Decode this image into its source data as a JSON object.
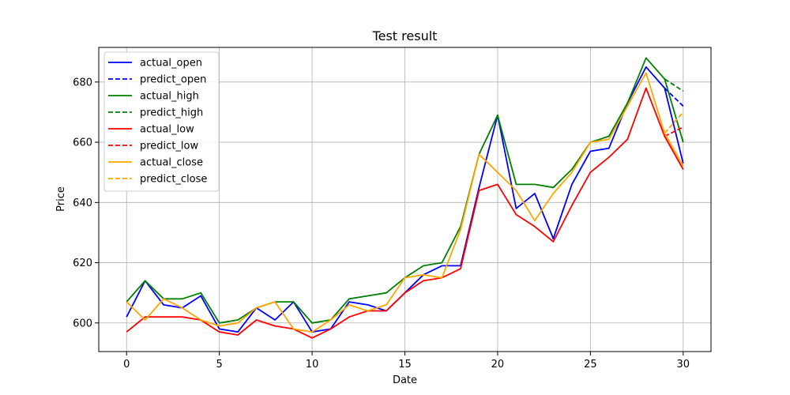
{
  "chart_data": {
    "type": "line",
    "title": "Test result",
    "xlabel": "Date",
    "ylabel": "Price",
    "xlim": [
      -1.5,
      31.5
    ],
    "ylim": [
      590.5,
      691.5
    ],
    "xticks": [
      0,
      5,
      10,
      15,
      20,
      25,
      30
    ],
    "yticks": [
      600,
      620,
      640,
      660,
      680
    ],
    "grid": true,
    "legend_position": "top-left",
    "series": [
      {
        "name": "actual_open",
        "color": "#0000ff",
        "dash": "solid",
        "x": [
          0,
          1,
          2,
          3,
          4,
          5,
          6,
          7,
          8,
          9,
          10,
          11,
          12,
          13,
          14,
          15,
          16,
          17,
          18,
          19,
          20,
          21,
          22,
          23,
          24,
          25,
          26,
          27,
          28,
          29,
          30
        ],
        "values": [
          602,
          614,
          606,
          605,
          609,
          598,
          597,
          605,
          601,
          607,
          597,
          598,
          607,
          606,
          604,
          610,
          616,
          619,
          619,
          645,
          669,
          638,
          643,
          628,
          646,
          657,
          658,
          673,
          685,
          678,
          653
        ]
      },
      {
        "name": "predict_open",
        "color": "#0000ff",
        "dash": "dashed",
        "x": [
          29,
          30
        ],
        "values": [
          678,
          672
        ]
      },
      {
        "name": "actual_high",
        "color": "#008000",
        "dash": "solid",
        "x": [
          0,
          1,
          2,
          3,
          4,
          5,
          6,
          7,
          8,
          9,
          10,
          11,
          12,
          13,
          14,
          15,
          16,
          17,
          18,
          19,
          20,
          21,
          22,
          23,
          24,
          25,
          26,
          27,
          28,
          29,
          30
        ],
        "values": [
          607,
          614,
          608,
          608,
          610,
          600,
          601,
          605,
          607,
          607,
          600,
          601,
          608,
          609,
          610,
          615,
          619,
          620,
          632,
          656,
          669,
          646,
          646,
          645,
          651,
          660,
          662,
          673,
          688,
          681,
          660
        ]
      },
      {
        "name": "predict_high",
        "color": "#008000",
        "dash": "dashed",
        "x": [
          29,
          30
        ],
        "values": [
          681,
          677
        ]
      },
      {
        "name": "actual_low",
        "color": "#ff0000",
        "dash": "solid",
        "x": [
          0,
          1,
          2,
          3,
          4,
          5,
          6,
          7,
          8,
          9,
          10,
          11,
          12,
          13,
          14,
          15,
          16,
          17,
          18,
          19,
          20,
          21,
          22,
          23,
          24,
          25,
          26,
          27,
          28,
          29,
          30
        ],
        "values": [
          597,
          602,
          602,
          602,
          601,
          597,
          596,
          601,
          599,
          598,
          595,
          598,
          602,
          604,
          604,
          610,
          614,
          615,
          618,
          644,
          646,
          636,
          632,
          627,
          639,
          650,
          655,
          661,
          678,
          662,
          651
        ]
      },
      {
        "name": "predict_low",
        "color": "#ff0000",
        "dash": "dashed",
        "x": [
          29,
          30
        ],
        "values": [
          662,
          665
        ]
      },
      {
        "name": "actual_close",
        "color": "#ffa500",
        "dash": "solid",
        "x": [
          0,
          1,
          2,
          3,
          4,
          5,
          6,
          7,
          8,
          9,
          10,
          11,
          12,
          13,
          14,
          15,
          16,
          17,
          18,
          19,
          20,
          21,
          22,
          23,
          24,
          25,
          26,
          27,
          28,
          29,
          30
        ],
        "values": [
          607,
          601,
          608,
          605,
          601,
          599,
          600,
          605,
          607,
          598,
          597,
          601,
          606,
          604,
          606,
          615,
          616,
          615,
          631,
          656,
          650,
          644,
          634,
          643,
          650,
          660,
          661,
          672,
          683,
          663,
          652
        ]
      },
      {
        "name": "predict_close",
        "color": "#ffa500",
        "dash": "dashed",
        "x": [
          29,
          30
        ],
        "values": [
          663,
          670
        ]
      }
    ]
  }
}
